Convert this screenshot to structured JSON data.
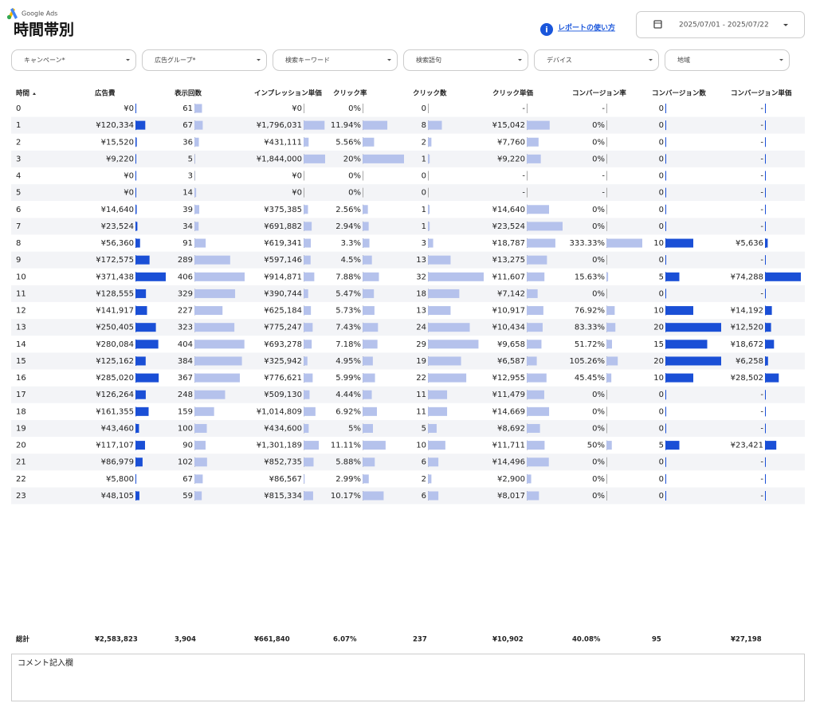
{
  "header": {
    "brand": "Google Ads",
    "title": "時間帯別",
    "help_link": "レポートの使い方",
    "date_range": "2025/07/01 - 2025/07/22"
  },
  "filters": [
    "キャンペーン*",
    "広告グループ*",
    "検索キーワード",
    "検索語句",
    "デバイス",
    "地域"
  ],
  "table": {
    "columns": [
      "時間",
      "広告費",
      "表示回数",
      "インプレッション単価",
      "クリック率",
      "クリック数",
      "クリック単価",
      "コンバージョン率",
      "コンバージョン数",
      "コンバージョン単価"
    ],
    "rows": [
      [
        "0",
        "¥0",
        "61",
        "¥0",
        "0%",
        "0",
        "-",
        "-",
        "0",
        "-"
      ],
      [
        "1",
        "¥120,334",
        "67",
        "¥1,796,031",
        "11.94%",
        "8",
        "¥15,042",
        "0%",
        "0",
        "-"
      ],
      [
        "2",
        "¥15,520",
        "36",
        "¥431,111",
        "5.56%",
        "2",
        "¥7,760",
        "0%",
        "0",
        "-"
      ],
      [
        "3",
        "¥9,220",
        "5",
        "¥1,844,000",
        "20%",
        "1",
        "¥9,220",
        "0%",
        "0",
        "-"
      ],
      [
        "4",
        "¥0",
        "3",
        "¥0",
        "0%",
        "0",
        "-",
        "-",
        "0",
        "-"
      ],
      [
        "5",
        "¥0",
        "14",
        "¥0",
        "0%",
        "0",
        "-",
        "-",
        "0",
        "-"
      ],
      [
        "6",
        "¥14,640",
        "39",
        "¥375,385",
        "2.56%",
        "1",
        "¥14,640",
        "0%",
        "0",
        "-"
      ],
      [
        "7",
        "¥23,524",
        "34",
        "¥691,882",
        "2.94%",
        "1",
        "¥23,524",
        "0%",
        "0",
        "-"
      ],
      [
        "8",
        "¥56,360",
        "91",
        "¥619,341",
        "3.3%",
        "3",
        "¥18,787",
        "333.33%",
        "10",
        "¥5,636"
      ],
      [
        "9",
        "¥172,575",
        "289",
        "¥597,146",
        "4.5%",
        "13",
        "¥13,275",
        "0%",
        "0",
        "-"
      ],
      [
        "10",
        "¥371,438",
        "406",
        "¥914,871",
        "7.88%",
        "32",
        "¥11,607",
        "15.63%",
        "5",
        "¥74,288"
      ],
      [
        "11",
        "¥128,555",
        "329",
        "¥390,744",
        "5.47%",
        "18",
        "¥7,142",
        "0%",
        "0",
        "-"
      ],
      [
        "12",
        "¥141,917",
        "227",
        "¥625,184",
        "5.73%",
        "13",
        "¥10,917",
        "76.92%",
        "10",
        "¥14,192"
      ],
      [
        "13",
        "¥250,405",
        "323",
        "¥775,247",
        "7.43%",
        "24",
        "¥10,434",
        "83.33%",
        "20",
        "¥12,520"
      ],
      [
        "14",
        "¥280,084",
        "404",
        "¥693,278",
        "7.18%",
        "29",
        "¥9,658",
        "51.72%",
        "15",
        "¥18,672"
      ],
      [
        "15",
        "¥125,162",
        "384",
        "¥325,942",
        "4.95%",
        "19",
        "¥6,587",
        "105.26%",
        "20",
        "¥6,258"
      ],
      [
        "16",
        "¥285,020",
        "367",
        "¥776,621",
        "5.99%",
        "22",
        "¥12,955",
        "45.45%",
        "10",
        "¥28,502"
      ],
      [
        "17",
        "¥126,264",
        "248",
        "¥509,130",
        "4.44%",
        "11",
        "¥11,479",
        "0%",
        "0",
        "-"
      ],
      [
        "18",
        "¥161,355",
        "159",
        "¥1,014,809",
        "6.92%",
        "11",
        "¥14,669",
        "0%",
        "0",
        "-"
      ],
      [
        "19",
        "¥43,460",
        "100",
        "¥434,600",
        "5%",
        "5",
        "¥8,692",
        "0%",
        "0",
        "-"
      ],
      [
        "20",
        "¥117,107",
        "90",
        "¥1,301,189",
        "11.11%",
        "10",
        "¥11,711",
        "50%",
        "5",
        "¥23,421"
      ],
      [
        "21",
        "¥86,979",
        "102",
        "¥852,735",
        "5.88%",
        "6",
        "¥14,496",
        "0%",
        "0",
        "-"
      ],
      [
        "22",
        "¥5,800",
        "67",
        "¥86,567",
        "2.99%",
        "2",
        "¥2,900",
        "0%",
        "0",
        "-"
      ],
      [
        "23",
        "¥48,105",
        "59",
        "¥815,334",
        "10.17%",
        "6",
        "¥8,017",
        "0%",
        "0",
        "-"
      ]
    ],
    "totals_label": "総計",
    "totals": [
      "¥2,583,823",
      "3,904",
      "¥661,840",
      "6.07%",
      "237",
      "¥10,902",
      "40.08%",
      "95",
      "¥27,198"
    ]
  },
  "comment": {
    "placeholder": "コメント記入欄"
  }
}
